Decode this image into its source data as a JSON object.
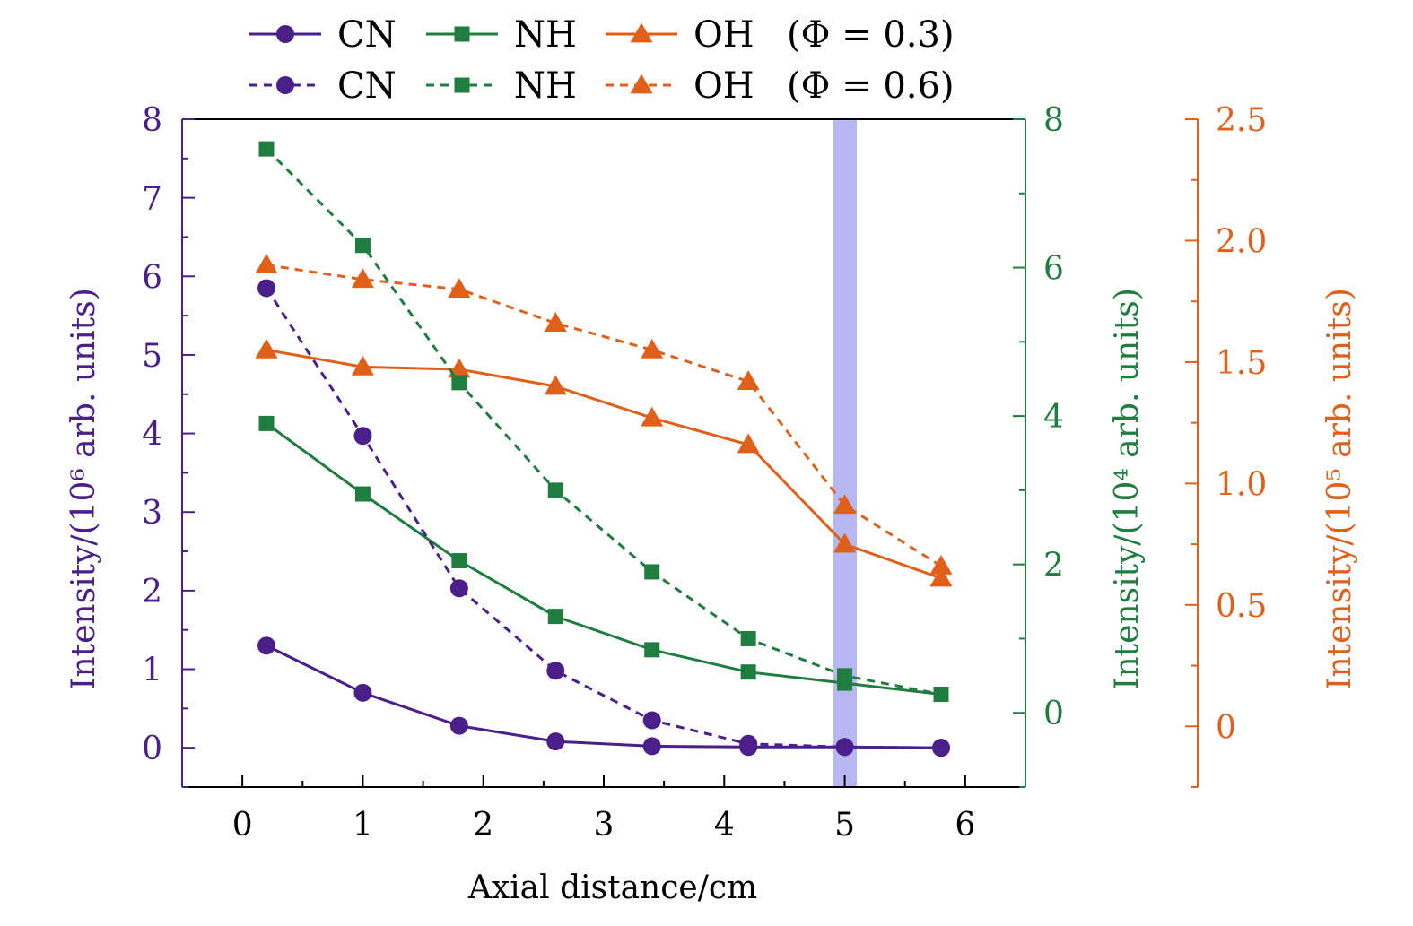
{
  "chart_data": {
    "type": "line",
    "xlabel": "Axial distance/cm",
    "xlim": [
      -0.5,
      6.5
    ],
    "xticks": [
      0,
      1,
      2,
      3,
      4,
      5,
      6
    ],
    "highlight_band": {
      "x_from": 4.9,
      "x_to": 5.1,
      "color": "#b7b8f2"
    },
    "axes": [
      {
        "id": "cn",
        "side": "left",
        "label": "Intensity/(10⁶ arb. units)",
        "ylim": [
          -0.5,
          8
        ],
        "ticks": [
          0,
          1,
          2,
          3,
          4,
          5,
          6,
          7,
          8
        ],
        "tick_labels": [
          "0",
          "1",
          "2",
          "3",
          "4",
          "5",
          "6",
          "7",
          "8"
        ],
        "color": "#4b1f8a"
      },
      {
        "id": "nh",
        "side": "right",
        "label": "Intensity/(10⁴ arb. units)",
        "ylim": [
          -1,
          8
        ],
        "ticks": [
          0,
          2,
          4,
          6,
          8
        ],
        "tick_labels": [
          "0",
          "2",
          "4",
          "6",
          "8"
        ],
        "color": "#1f7d3f"
      },
      {
        "id": "oh",
        "side": "right2",
        "label": "Intensity/(10⁵ arb. units)",
        "ylim": [
          -0.25,
          2.5
        ],
        "ticks": [
          0,
          0.5,
          1,
          1.5,
          2,
          2.5
        ],
        "tick_labels": [
          "0",
          "0.5",
          "1.0",
          "1.5",
          "2.0",
          "2.5"
        ],
        "color": "#e0601a"
      }
    ],
    "series": [
      {
        "name": "CN",
        "phi": "Φ = 0.3",
        "axis": "cn",
        "style": "solid",
        "marker": "circle",
        "color": "#4b1f8a",
        "x": [
          0.2,
          1.0,
          1.8,
          2.6,
          3.4,
          4.2,
          5.0,
          5.8
        ],
        "values": [
          1.3,
          0.7,
          0.28,
          0.08,
          0.02,
          0.01,
          0.01,
          0.0
        ]
      },
      {
        "name": "NH",
        "phi": "Φ = 0.3",
        "axis": "nh",
        "style": "solid",
        "marker": "square",
        "color": "#1f7d3f",
        "x": [
          0.2,
          1.0,
          1.8,
          2.6,
          3.4,
          4.2,
          5.0,
          5.8
        ],
        "values": [
          3.9,
          2.95,
          2.05,
          1.3,
          0.85,
          0.55,
          0.4,
          0.25
        ]
      },
      {
        "name": "OH",
        "phi": "Φ = 0.3",
        "axis": "oh",
        "style": "solid",
        "marker": "triangle",
        "color": "#e0601a",
        "x": [
          0.2,
          1.0,
          1.8,
          2.6,
          3.4,
          4.2,
          5.0,
          5.8
        ],
        "values": [
          1.55,
          1.48,
          1.47,
          1.4,
          1.27,
          1.16,
          0.75,
          0.61
        ]
      },
      {
        "name": "CN",
        "phi": "Φ = 0.6",
        "axis": "cn",
        "style": "dashed",
        "marker": "circle",
        "color": "#4b1f8a",
        "x": [
          0.2,
          1.0,
          1.8,
          2.6,
          3.4,
          4.2,
          5.0,
          5.8
        ],
        "values": [
          5.85,
          3.97,
          2.03,
          0.98,
          0.35,
          0.05,
          0.01,
          0.0
        ]
      },
      {
        "name": "NH",
        "phi": "Φ = 0.6",
        "axis": "nh",
        "style": "dashed",
        "marker": "square",
        "color": "#1f7d3f",
        "x": [
          0.2,
          1.0,
          1.8,
          2.6,
          3.4,
          4.2,
          5.0,
          5.8
        ],
        "values": [
          7.6,
          6.3,
          4.45,
          3.0,
          1.9,
          1.0,
          0.5,
          0.25
        ]
      },
      {
        "name": "OH",
        "phi": "Φ = 0.6",
        "axis": "oh",
        "style": "dashed",
        "marker": "triangle",
        "color": "#e0601a",
        "x": [
          0.2,
          1.0,
          1.8,
          2.6,
          3.4,
          4.2,
          5.0,
          5.8
        ],
        "values": [
          1.9,
          1.84,
          1.8,
          1.66,
          1.55,
          1.42,
          0.91,
          0.66
        ]
      }
    ],
    "legend": {
      "position": "top",
      "rows": [
        {
          "phi_label": "(Φ = 0.3)",
          "style": "solid",
          "entries": [
            "CN",
            "NH",
            "OH"
          ]
        },
        {
          "phi_label": "(Φ = 0.6)",
          "style": "dashed",
          "entries": [
            "CN",
            "NH",
            "OH"
          ]
        }
      ]
    }
  }
}
